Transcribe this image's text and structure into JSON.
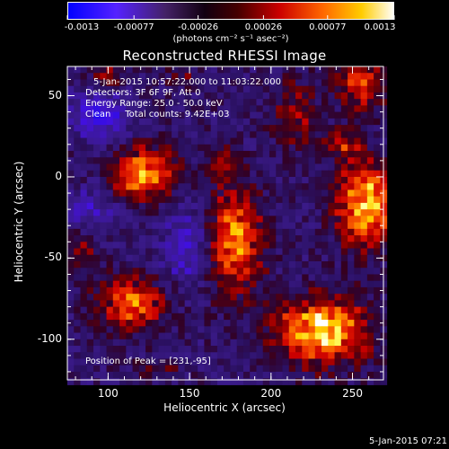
{
  "colorbar": {
    "tick_labels": [
      "-0.0013",
      "-0.00077",
      "-0.00026",
      "0.00026",
      "0.00077",
      "0.0013"
    ],
    "range": [
      -0.0013,
      0.0013
    ],
    "unit_label": "(photons cm⁻² s⁻¹ asec⁻²)"
  },
  "title": "Reconstructed RHESSI Image",
  "annotations": {
    "time": "5-Jan-2015 10:57:22.000 to 11:03:22.000",
    "detectors": "Detectors: 3F 6F 9F, Att 0",
    "energy": "Energy Range: 25.0 - 50.0 keV",
    "clean": "Clean     Total counts: 9.42E+03",
    "peak": "Position of Peak = [231,-95]"
  },
  "footer_date": "5-Jan-2015 07:21",
  "chart_data": {
    "type": "heatmap",
    "title": "Reconstructed RHESSI Image",
    "xlabel": "Heliocentric X (arcsec)",
    "ylabel": "Heliocentric Y (arcsec)",
    "xlim": [
      75,
      269
    ],
    "ylim": [
      -125,
      68
    ],
    "x_ticks": [
      100,
      150,
      200,
      250
    ],
    "y_ticks": [
      50,
      0,
      -50,
      -100
    ],
    "colormap": [
      "#0000ff",
      "#4411ff",
      "#3a1a88",
      "#22104a",
      "#110011",
      "#550000",
      "#aa0000",
      "#ee2200",
      "#ff8800",
      "#ffdd00",
      "#ffffcc",
      "#ffffff"
    ],
    "value_range": [
      -0.0013,
      0.0013
    ],
    "pixel_size": 4,
    "sources": [
      {
        "x": 231,
        "y": -95,
        "amp": 1.0,
        "sx": 20,
        "sy": 14
      },
      {
        "x": 258,
        "y": -17,
        "amp": 0.95,
        "sx": 13,
        "sy": 18
      },
      {
        "x": 177,
        "y": -40,
        "amp": 0.85,
        "sx": 12,
        "sy": 22
      },
      {
        "x": 122,
        "y": 2,
        "amp": 0.85,
        "sx": 14,
        "sy": 11
      },
      {
        "x": 115,
        "y": -78,
        "amp": 0.7,
        "sx": 15,
        "sy": 12
      },
      {
        "x": 255,
        "y": 58,
        "amp": 0.65,
        "sx": 10,
        "sy": 12
      },
      {
        "x": 215,
        "y": 38,
        "amp": 0.4,
        "sx": 10,
        "sy": 16
      },
      {
        "x": 170,
        "y": 10,
        "amp": 0.35,
        "sx": 7,
        "sy": 8
      },
      {
        "x": 100,
        "y": 62,
        "amp": 0.35,
        "sx": 8,
        "sy": 6
      },
      {
        "x": 145,
        "y": 62,
        "amp": 0.25,
        "sx": 7,
        "sy": 5
      },
      {
        "x": 85,
        "y": -45,
        "amp": 0.35,
        "sx": 6,
        "sy": 8
      },
      {
        "x": 245,
        "y": 20,
        "amp": 0.45,
        "sx": 8,
        "sy": 6
      },
      {
        "x": 130,
        "y": -118,
        "amp": 0.3,
        "sx": 10,
        "sy": 4
      },
      {
        "x": 95,
        "y": 38,
        "amp": -0.55,
        "sx": 12,
        "sy": 10
      },
      {
        "x": 150,
        "y": -45,
        "amp": -0.45,
        "sx": 12,
        "sy": 16
      },
      {
        "x": 90,
        "y": -20,
        "amp": -0.35,
        "sx": 10,
        "sy": 10
      }
    ],
    "peak": [
      231,
      -95
    ]
  }
}
